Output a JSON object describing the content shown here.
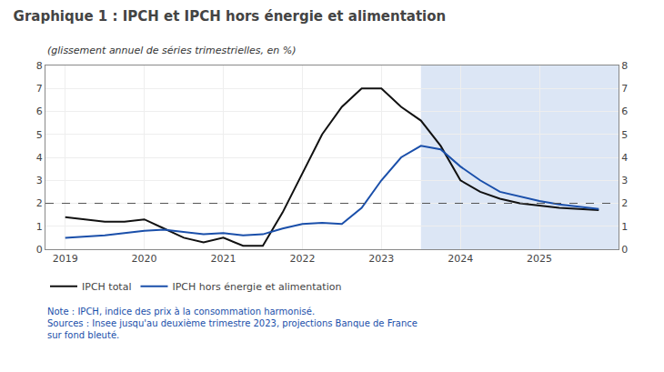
{
  "chart_data": {
    "type": "line",
    "title": "Graphique 1 : IPCH et IPCH hors énergie et alimentation",
    "subtitle": "(glissement annuel de séries trimestrielles, en %)",
    "annotations": [
      "Note : IPCH, indice des prix à la consommation harmonisé.\nSources : Insee jusqu'au deuxième trimestre 2023, projections Banque de France\nsur fond bleuté."
    ],
    "x": [
      2019.0,
      2019.25,
      2019.5,
      2019.75,
      2020.0,
      2020.25,
      2020.5,
      2020.75,
      2021.0,
      2021.25,
      2021.5,
      2021.75,
      2022.0,
      2022.25,
      2022.5,
      2022.75,
      2023.0,
      2023.25,
      2023.5,
      2023.75,
      2024.0,
      2024.25,
      2024.5,
      2024.75,
      2025.0,
      2025.25,
      2025.5,
      2025.75
    ],
    "series": [
      {
        "name": "IPCH total",
        "color": "#111111",
        "values": [
          1.4,
          1.3,
          1.2,
          1.2,
          1.3,
          0.9,
          0.5,
          0.3,
          0.5,
          0.15,
          0.15,
          1.6,
          3.3,
          5.0,
          6.2,
          7.0,
          7.0,
          6.2,
          5.6,
          4.5,
          3.0,
          2.5,
          2.2,
          2.0,
          1.9,
          1.8,
          1.75,
          1.7
        ]
      },
      {
        "name": "IPCH hors énergie et alimentation",
        "color": "#1a4faa",
        "values": [
          0.5,
          0.55,
          0.6,
          0.7,
          0.8,
          0.85,
          0.75,
          0.65,
          0.7,
          0.6,
          0.65,
          0.9,
          1.1,
          1.15,
          1.1,
          1.8,
          3.0,
          4.0,
          4.5,
          4.35,
          3.6,
          3.0,
          2.5,
          2.3,
          2.1,
          1.95,
          1.85,
          1.75
        ]
      }
    ],
    "xlim": [
      2018.75,
      2026.0
    ],
    "xticks": [
      2019,
      2020,
      2021,
      2022,
      2023,
      2024,
      2025
    ],
    "ylim": [
      0,
      8
    ],
    "yticks": [
      0,
      1,
      2,
      3,
      4,
      5,
      6,
      7,
      8
    ],
    "y2lim": [
      0,
      8
    ],
    "y2ticks": [
      0,
      1,
      2,
      3,
      4,
      5,
      6,
      7,
      8
    ],
    "projection": {
      "start": 2023.5,
      "color": "#dce6f5"
    },
    "hlines": [
      {
        "value": 2.0,
        "line_style": "dashed"
      }
    ],
    "grid": true,
    "legend": "bottom"
  }
}
